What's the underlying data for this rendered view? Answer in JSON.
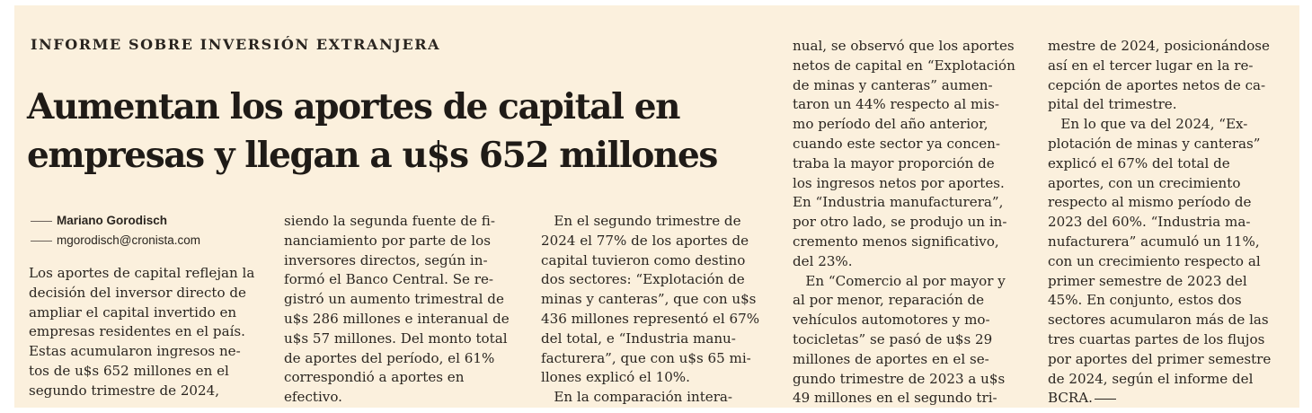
{
  "article": {
    "kicker": "INFORME SOBRE INVERSIÓN EXTRANJERA",
    "headline": [
      "Aumentan los aportes de capital en",
      "empresas y llegan a u$s 652 millones"
    ],
    "author": "Mariano Gorodisch",
    "email": "mgorodisch@cronista.com",
    "columns": [
      [
        "Los aportes de capital reflejan la",
        "decisión del inversor directo de",
        "ampliar el capital invertido en",
        "empresas residentes en el país.",
        "Estas acumularon ingresos ne-",
        "tos de u$s 652 millones en el",
        "segundo trimestre de 2024,"
      ],
      [
        "siendo la segunda fuente de fi-",
        "nanciamiento por parte de los",
        "inversores directos, según in-",
        "formó el Banco Central. Se re-",
        "gistró un aumento trimestral de",
        "u$s 286 millones e interanual de",
        "u$s 57 millones. Del monto total",
        "de aportes del período, el 61%",
        "correspondió a aportes en",
        "efectivo."
      ],
      [
        "   En el segundo trimestre de",
        "2024 el 77% de los aportes de",
        "capital tuvieron como destino",
        "dos sectores: “Explotación de",
        "minas y canteras”, que con u$s",
        "436 millones representó el 67%",
        "del total, e “Industria manu-",
        "facturera”, que con u$s 65 mi-",
        "llones explicó el 10%.",
        "   En la comparación intera-"
      ],
      [
        "nual, se observó que los aportes",
        "netos de capital en “Explotación",
        "de minas y canteras” aumen-",
        "taron un 44% respecto al mis-",
        "mo período del año anterior,",
        "cuando este sector ya concen-",
        "traba la mayor proporción de",
        "los ingresos netos por aportes.",
        "En “Industria manufacturera”,",
        "por otro lado, se produjo un in-",
        "cremento menos significativo,",
        "del 23%.",
        "   En “Comercio al por mayor y",
        "al por menor, reparación de",
        "vehículos automotores y mo-",
        "tocicletas” se pasó de u$s 29",
        "millones de aportes en el se-",
        "gundo trimestre de 2023 a u$s",
        "49 millones en el segundo tri-"
      ],
      [
        "mestre de 2024, posicionándose",
        "así en el tercer lugar en la re-",
        "cepción de aportes netos de ca-",
        "pital del trimestre.",
        "   En lo que va del 2024, “Ex-",
        "plotación de minas y canteras”",
        "explicó el 67% del total de",
        "aportes, con un crecimiento",
        "respecto al mismo período de",
        "2023 del 60%. “Industria ma-",
        "nufacturera” acumuló un 11%,",
        "con un crecimiento respecto al",
        "primer semestre de 2023 del",
        "45%. En conjunto, estos dos",
        "sectores acumularon más de las",
        "tres cuartas partes de los flujos",
        "por aportes del primer semestre",
        "de 2024, según el informe del",
        "BCRA."
      ]
    ]
  }
}
